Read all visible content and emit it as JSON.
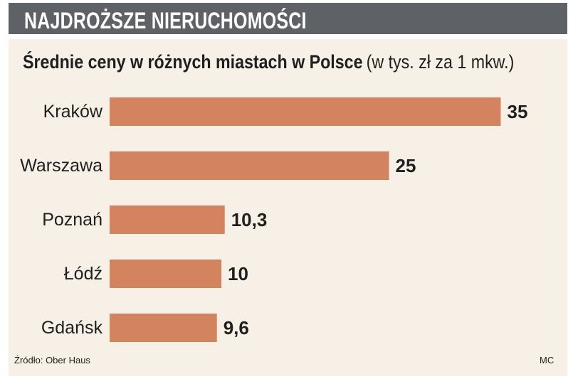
{
  "header": {
    "title": "NAJDROŻSZE NIERUCHOMOŚCI"
  },
  "chart_data": {
    "type": "bar",
    "orientation": "horizontal",
    "title": "Średnie ceny w różnych miastach w Polsce",
    "unit": "(w tys. zł za 1 mkw.)",
    "categories": [
      "Kraków",
      "Warszawa",
      "Poznań",
      "Łódź",
      "Gdańsk"
    ],
    "values": [
      35,
      25,
      10.3,
      10,
      9.6
    ],
    "value_labels": [
      "35",
      "25",
      "10,3",
      "10",
      "9,6"
    ],
    "bar_color": "#d4835f",
    "grid": false,
    "legend": "none"
  },
  "footer": {
    "source": "Źródło: Ober Haus",
    "author": "MC"
  },
  "colors": {
    "header_bg": "#5e6166",
    "panel_bg": "#f6f0e6",
    "bar": "#d4835f"
  }
}
